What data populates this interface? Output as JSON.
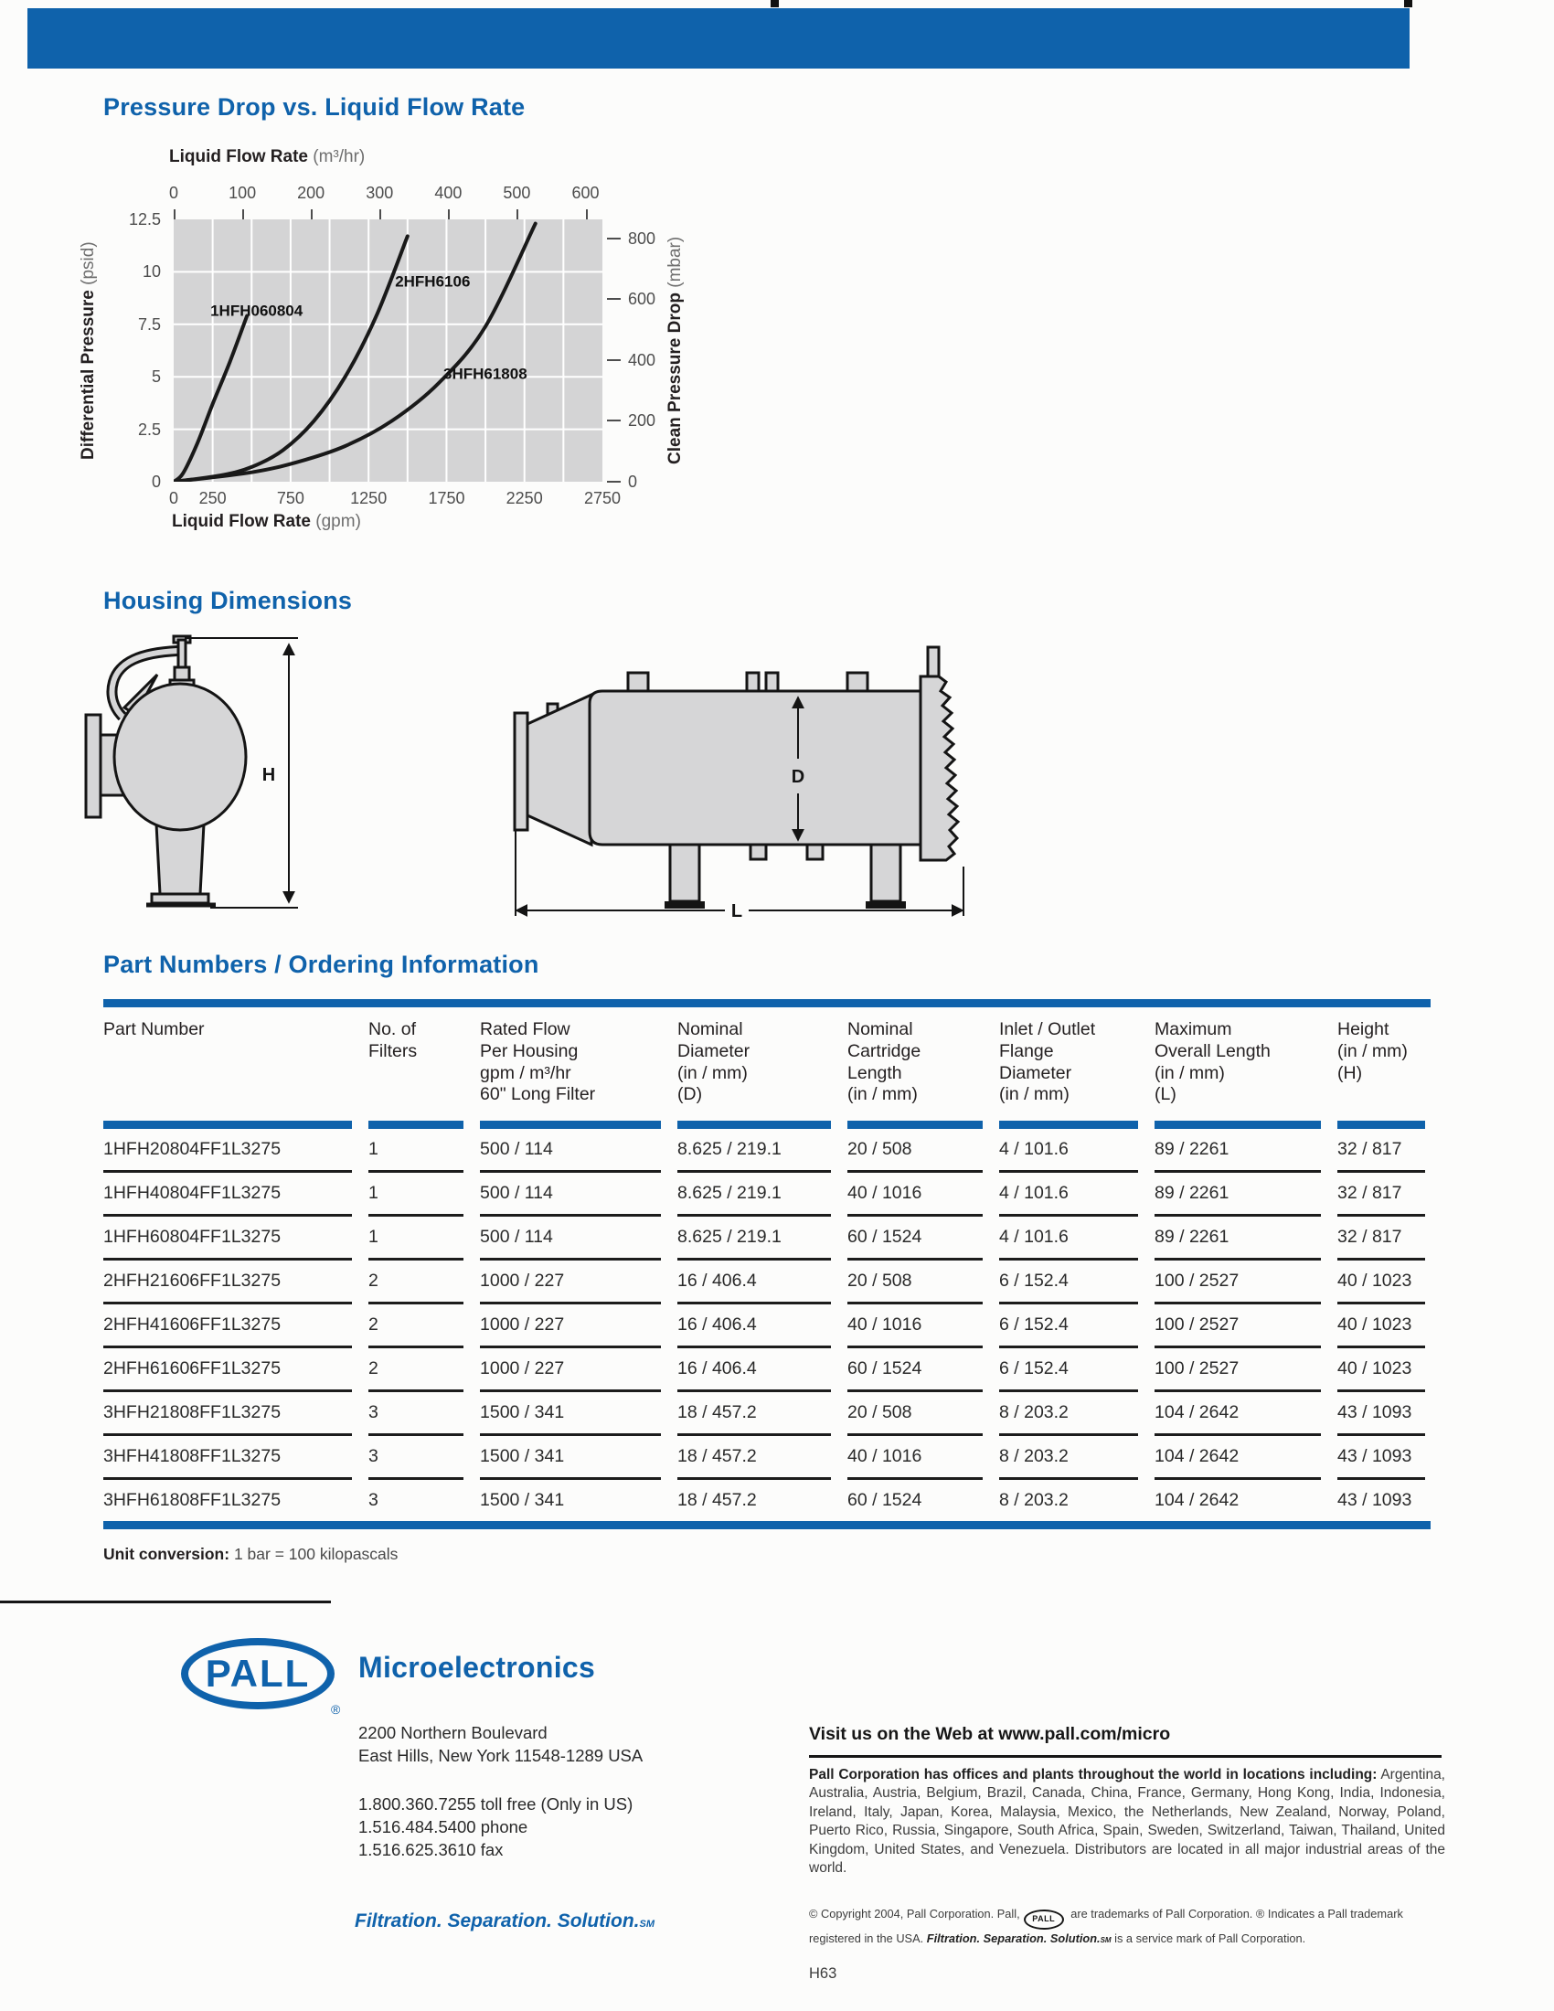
{
  "colors": {
    "accent_blue": "#0f62ab",
    "chart_bg": "#d4d4d5",
    "grid_white": "#ffffff",
    "text_black": "#231f20",
    "tick_gray": "#4d4d4d"
  },
  "sections": {
    "chart_title": "Pressure Drop vs. Liquid Flow Rate",
    "housing_title": "Housing Dimensions",
    "parts_title": "Part Numbers / Ordering Information"
  },
  "chart": {
    "top_axis": {
      "label": "Liquid Flow Rate",
      "unit": "(m³/hr)"
    },
    "bottom_axis": {
      "label": "Liquid Flow Rate",
      "unit": "(gpm)"
    },
    "left_axis": {
      "label": "Differential Pressure",
      "unit": "(psid)"
    },
    "right_axis": {
      "label": "Clean Pressure Drop",
      "unit": "(mbar)"
    },
    "chart_data": {
      "type": "line",
      "title": "Pressure Drop vs. Liquid Flow Rate",
      "x_gpm_range": [
        0,
        2750
      ],
      "y_psid_range": [
        0,
        12.5
      ],
      "x2_m3hr_ticks": [
        0,
        100,
        200,
        300,
        400,
        500,
        600
      ],
      "x_gpm_ticks": [
        0,
        250,
        750,
        1250,
        1750,
        2250,
        2750
      ],
      "y_psid_ticks": [
        12.5,
        10,
        7.5,
        5,
        2.5,
        0
      ],
      "y2_mbar_ticks": [
        800,
        600,
        400,
        200,
        0
      ],
      "y2_mbar_at_top": 861.8,
      "grid": {
        "x_step_gpm": 250,
        "y_step_psid": 2.5,
        "on": true
      },
      "series": [
        {
          "name": "1HFH060804",
          "points_gpm_psid": [
            [
              0,
              0
            ],
            [
              60,
              0.4
            ],
            [
              150,
              1.8
            ],
            [
              250,
              3.7
            ],
            [
              360,
              5.7
            ],
            [
              470,
              7.9
            ]
          ],
          "label_at_gpm_psid": [
            235,
            7.9
          ]
        },
        {
          "name": "2HFH6106",
          "points_gpm_psid": [
            [
              0,
              0
            ],
            [
              300,
              0.3
            ],
            [
              500,
              0.7
            ],
            [
              700,
              1.5
            ],
            [
              900,
              2.9
            ],
            [
              1100,
              5.0
            ],
            [
              1300,
              7.9
            ],
            [
              1500,
              11.7
            ]
          ],
          "label_at_gpm_psid": [
            1420,
            9.3
          ]
        },
        {
          "name": "3HFH61808",
          "points_gpm_psid": [
            [
              0,
              0
            ],
            [
              500,
              0.45
            ],
            [
              800,
              0.95
            ],
            [
              1100,
              1.7
            ],
            [
              1400,
              2.9
            ],
            [
              1700,
              4.7
            ],
            [
              2000,
              7.4
            ],
            [
              2320,
              12.3
            ]
          ],
          "label_at_gpm_psid": [
            1730,
            4.9
          ]
        }
      ]
    }
  },
  "housing": {
    "dim_h": "H",
    "dim_d": "D",
    "dim_l": "L"
  },
  "table": {
    "columns": [
      "Part Number",
      "No. of\nFilters",
      "Rated Flow\nPer Housing\ngpm / m³/hr\n60\" Long Filter",
      "Nominal\nDiameter\n(in / mm)\n(D)",
      "Nominal\nCartridge\nLength\n(in / mm)",
      "Inlet / Outlet\nFlange\nDiameter\n(in / mm)",
      "Maximum\nOverall Length\n(in / mm)\n(L)",
      "Height\n(in / mm)\n(H)"
    ],
    "rows": [
      [
        "1HFH20804FF1L3275",
        "1",
        "500 / 114",
        "8.625 / 219.1",
        "20 / 508",
        "4 / 101.6",
        "89 / 2261",
        "32 / 817"
      ],
      [
        "1HFH40804FF1L3275",
        "1",
        "500 / 114",
        "8.625 / 219.1",
        "40 / 1016",
        "4 / 101.6",
        "89 / 2261",
        "32 / 817"
      ],
      [
        "1HFH60804FF1L3275",
        "1",
        "500 / 114",
        "8.625 / 219.1",
        "60 / 1524",
        "4 / 101.6",
        "89 / 2261",
        "32 / 817"
      ],
      [
        "2HFH21606FF1L3275",
        "2",
        "1000 / 227",
        "16 / 406.4",
        "20 / 508",
        "6 / 152.4",
        "100 / 2527",
        "40 / 1023"
      ],
      [
        "2HFH41606FF1L3275",
        "2",
        "1000 / 227",
        "16 / 406.4",
        "40 / 1016",
        "6 / 152.4",
        "100 / 2527",
        "40 / 1023"
      ],
      [
        "2HFH61606FF1L3275",
        "2",
        "1000 / 227",
        "16 / 406.4",
        "60 / 1524",
        "6 / 152.4",
        "100 / 2527",
        "40 / 1023"
      ],
      [
        "3HFH21808FF1L3275",
        "3",
        "1500 / 341",
        "18 / 457.2",
        "20 / 508",
        "8 / 203.2",
        "104 / 2642",
        "43 / 1093"
      ],
      [
        "3HFH41808FF1L3275",
        "3",
        "1500 / 341",
        "18 / 457.2",
        "40 / 1016",
        "8 / 203.2",
        "104 / 2642",
        "43 / 1093"
      ],
      [
        "3HFH61808FF1L3275",
        "3",
        "1500 / 341",
        "18 / 457.2",
        "60 / 1524",
        "8 / 203.2",
        "104 / 2642",
        "43 / 1093"
      ]
    ]
  },
  "unit_note": {
    "label": "Unit conversion:",
    "text": " 1 bar = 100 kilopascals"
  },
  "footer": {
    "logo": {
      "text": "PALL",
      "reg": "®"
    },
    "brand": "Microelectronics",
    "address": [
      "2200 Northern Boulevard",
      "East Hills, New York 11548-1289 USA"
    ],
    "phones": [
      "1.800.360.7255 toll free (Only in US)",
      "1.516.484.5400 phone",
      "1.516.625.3610 fax"
    ],
    "web": "Visit us on the Web at www.pall.com/micro",
    "offices_lead": "Pall Corporation has offices and plants throughout the world in locations including:",
    "offices_body": " Argentina, Australia, Austria, Belgium, Brazil, Canada, China, France, Germany, Hong Kong, India, Indonesia, Ireland, Italy, Japan, Korea, Malaysia, Mexico, the Netherlands, New Zealand, Norway, Poland, Puerto Rico, Russia, Singapore, South Africa, Spain, Sweden, Switzerland, Taiwan, Thailand, United Kingdom, United States, and Venezuela.  Distributors are located in all major industrial areas of the world.",
    "tagline": "Filtration. Separation. Solution.",
    "tagline_sm": "SM",
    "copyright": {
      "part1": "© Copyright 2004, Pall Corporation. Pall,",
      "part2": " are trademarks of Pall Corporation. ® Indicates a Pall trademark registered in the USA. ",
      "part3": " is a service mark of Pall Corporation."
    }
  },
  "page_number": "H63"
}
